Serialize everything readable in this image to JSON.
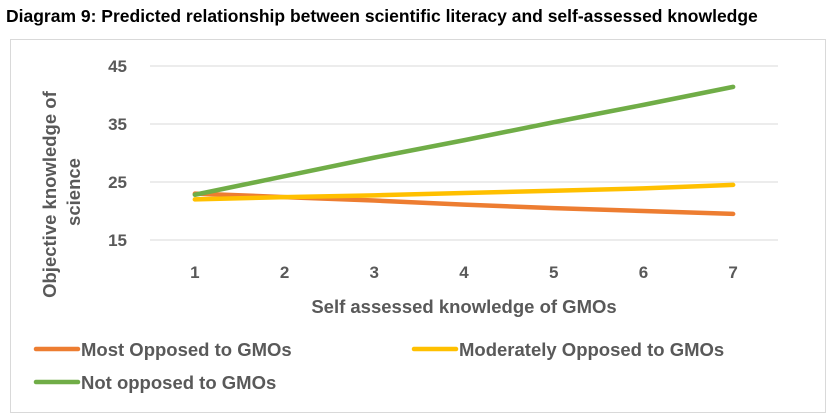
{
  "title": "Diagram 9: Predicted relationship between scientific literacy and self-assessed knowledge",
  "chart_data": {
    "type": "line",
    "title": "Diagram 9: Predicted relationship between scientific literacy and self-assessed knowledge",
    "xlabel": "Self assessed knowledge of GMOs",
    "ylabel_lines": [
      "Objective knowledge of",
      "science"
    ],
    "x": [
      1,
      2,
      3,
      4,
      5,
      6,
      7
    ],
    "yticks": [
      15,
      25,
      35,
      45
    ],
    "ylim": [
      15,
      45
    ],
    "grid": "horizontal",
    "legend_position": "bottom",
    "series": [
      {
        "name": "Most Opposed to GMOs",
        "color": "#ED7D31",
        "values": [
          23.0,
          22.4,
          21.8,
          21.1,
          20.5,
          20.0,
          19.5
        ]
      },
      {
        "name": "Moderately Opposed to GMOs",
        "color": "#FFC000",
        "values": [
          22.0,
          22.4,
          22.7,
          23.1,
          23.5,
          23.9,
          24.5
        ]
      },
      {
        "name": "Not opposed to GMOs",
        "color": "#70AD47",
        "values": [
          22.8,
          26.0,
          29.2,
          32.2,
          35.3,
          38.3,
          41.4
        ]
      }
    ]
  }
}
